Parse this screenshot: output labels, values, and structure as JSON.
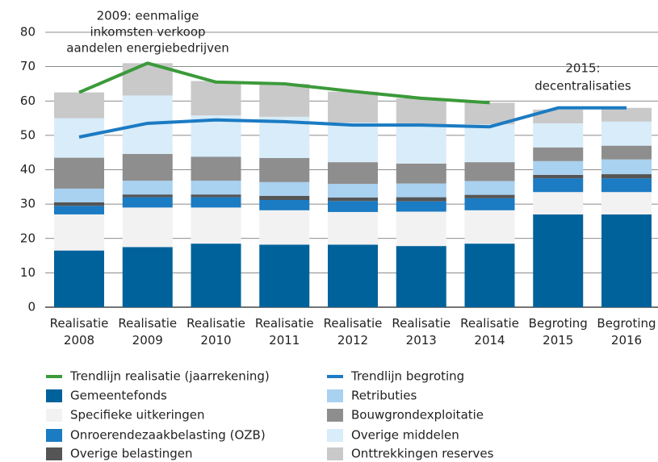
{
  "chart_data": {
    "type": "stacked-bar-line",
    "categories": [
      "Realisatie 2008",
      "Realisatie 2009",
      "Realisatie 2010",
      "Realisatie 2011",
      "Realisatie 2012",
      "Realisatie 2013",
      "Realisatie 2014",
      "Begroting 2015",
      "Begroting 2016"
    ],
    "ylim": [
      0,
      80
    ],
    "yticks": [
      0,
      10,
      20,
      30,
      40,
      50,
      60,
      70,
      80
    ],
    "grid": true,
    "series": [
      {
        "name": "Gemeentefonds",
        "color": "#00629b",
        "values": [
          16.5,
          17.5,
          18.5,
          18.2,
          18.2,
          17.8,
          18.5,
          27,
          27
        ]
      },
      {
        "name": "Specifieke uitkeringen",
        "color": "#f2f2f2",
        "values": [
          10.5,
          11.5,
          10.5,
          10,
          9.5,
          10,
          9.7,
          6.5,
          6.5
        ]
      },
      {
        "name": "Onroerendezaakbelasting (OZB)",
        "color": "#1b7bc3",
        "values": [
          2.5,
          3,
          3,
          3,
          3.2,
          3,
          3.5,
          4,
          4
        ]
      },
      {
        "name": "Overige belastingen",
        "color": "#555555",
        "values": [
          1,
          0.8,
          0.8,
          1.2,
          1,
          1.2,
          1,
          1,
          1.2
        ]
      },
      {
        "name": "Retributies",
        "color": "#a9d1f0",
        "values": [
          4,
          4,
          4,
          4,
          4,
          4,
          4,
          4,
          4.3
        ]
      },
      {
        "name": "Bouwgrondexploitatie",
        "color": "#8e8e8e",
        "values": [
          9,
          7.8,
          7,
          7,
          6.3,
          5.8,
          5.5,
          4,
          4
        ]
      },
      {
        "name": "Overige middelen",
        "color": "#d8ecf9",
        "values": [
          11.5,
          17,
          12,
          12,
          11.5,
          11,
          11,
          7,
          7
        ]
      },
      {
        "name": "Onttrekkingen reserves",
        "color": "#c9c9c9",
        "values": [
          7.5,
          9.4,
          10,
          9.6,
          9,
          8,
          6.3,
          4,
          4
        ]
      }
    ],
    "lines": [
      {
        "name": "Trendlijn realisatie (jaarrekening)",
        "color": "#3b9a3a",
        "values": [
          62.5,
          71,
          65.5,
          65,
          62.8,
          60.8,
          59.5,
          null,
          null
        ]
      },
      {
        "name": "Trendlijn begroting",
        "color": "#1b7bc3",
        "values": [
          49.5,
          53.5,
          54.5,
          54,
          53,
          53,
          52.5,
          58,
          58
        ]
      }
    ],
    "annotations": [
      {
        "lines": [
          "2009: eenmalige",
          "inkomsten verkoop",
          "aandelen energiebedrijven"
        ]
      },
      {
        "lines": [
          "2015:",
          "decentralisaties"
        ]
      }
    ]
  }
}
